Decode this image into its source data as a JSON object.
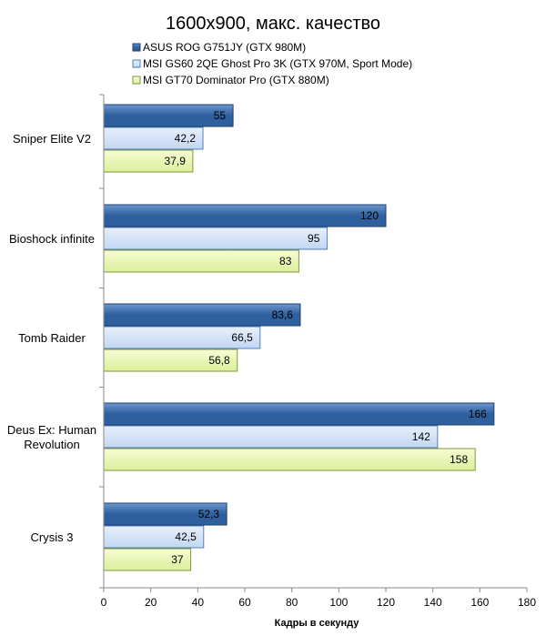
{
  "chart_data": {
    "type": "bar",
    "orientation": "horizontal",
    "title": "1600x900, макс. качество",
    "xlabel": "Кадры  в секунду",
    "ylabel": "",
    "xlim": [
      0,
      180
    ],
    "x_ticks": [
      "0",
      "20",
      "40",
      "60",
      "80",
      "100",
      "120",
      "140",
      "160",
      "180"
    ],
    "grid": false,
    "legend_position": "top",
    "categories": [
      "Sniper Elite V2",
      "Bioshock infinite",
      "Tomb Raider",
      "Deus Ex: Human Revolution",
      "Crysis 3"
    ],
    "category_label_lines": [
      [
        "Sniper Elite V2"
      ],
      [
        "Bioshock infinite"
      ],
      [
        "Tomb Raider"
      ],
      [
        "Deus Ex: Human",
        "Revolution"
      ],
      [
        "Crysis 3"
      ]
    ],
    "series": [
      {
        "name": "ASUS ROG G751JY (GTX 980M)",
        "values": [
          55,
          120,
          83.6,
          166,
          52.3
        ],
        "labels": [
          "55",
          "120",
          "83,6",
          "166",
          "52,3"
        ],
        "color": "#2e5f9e",
        "color_light": "#6d97cf",
        "border": "#1f3f6b"
      },
      {
        "name": "MSI GS60 2QE Ghost Pro 3K (GTX 970M, Sport Mode)",
        "values": [
          42.2,
          95,
          66.5,
          142,
          42.5
        ],
        "labels": [
          "42,2",
          "95",
          "66,5",
          "142",
          "42,5"
        ],
        "color": "#e8f0fc",
        "color_light": "#c2d6f2",
        "border": "#4f7fc0"
      },
      {
        "name": "MSI GT70 Dominator Pro (GTX 880M)",
        "values": [
          37.9,
          83,
          56.8,
          158,
          37
        ],
        "labels": [
          "37,9",
          "83",
          "56,8",
          "158",
          "37"
        ],
        "color": "#f6fcd6",
        "color_light": "#dcef9a",
        "border": "#7e9a36"
      }
    ]
  }
}
